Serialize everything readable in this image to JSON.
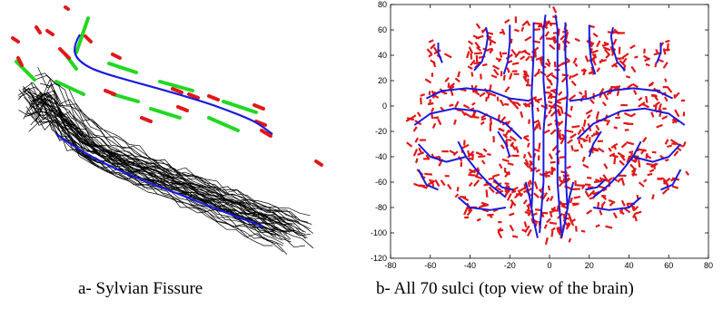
{
  "figure": {
    "caption_a": "a- Sylvian Fissure",
    "caption_b": "b- All 70 sulci (top view of the brain)"
  },
  "colors": {
    "blue": "#1a1adc",
    "red": "#e01818",
    "green": "#22d822",
    "black": "#000000"
  },
  "chart_data": [
    {
      "type": "line",
      "title": "",
      "xlabel": "",
      "ylabel": "",
      "grid": false,
      "legend": "none",
      "axes": "hidden",
      "description_series": [
        {
          "color": "#1a1adc"
        },
        {
          "color": "#e01818"
        },
        {
          "color": "#22d822"
        },
        {
          "color": "#000000"
        }
      ]
    },
    {
      "type": "scatter",
      "title": "",
      "xlabel": "",
      "ylabel": "",
      "xlim": [
        -80,
        80
      ],
      "ylim": [
        -120,
        80
      ],
      "x_ticks": [
        -80,
        -60,
        -40,
        -20,
        0,
        20,
        40,
        60,
        80
      ],
      "y_ticks": [
        -120,
        -100,
        -80,
        -60,
        -40,
        -20,
        0,
        20,
        40,
        60,
        80
      ],
      "grid": false,
      "series": [
        {
          "color": "#1a1adc",
          "type": "line",
          "curves": [
            [
              [
                -2,
                72
              ],
              [
                -3,
                60
              ],
              [
                -3,
                40
              ],
              [
                -3,
                20
              ],
              [
                -2,
                0
              ],
              [
                -3,
                -20
              ],
              [
                -3,
                -40
              ],
              [
                -3,
                -60
              ],
              [
                -4,
                -80
              ],
              [
                -5,
                -100
              ]
            ],
            [
              [
                3,
                72
              ],
              [
                4,
                60
              ],
              [
                4,
                40
              ],
              [
                4,
                20
              ],
              [
                3,
                0
              ],
              [
                4,
                -20
              ],
              [
                4,
                -40
              ],
              [
                4,
                -60
              ],
              [
                5,
                -80
              ],
              [
                6,
                -100
              ]
            ],
            [
              [
                -8,
                66
              ],
              [
                -8,
                40
              ],
              [
                -9,
                10
              ],
              [
                -8,
                -20
              ],
              [
                -8,
                -50
              ],
              [
                -9,
                -80
              ]
            ],
            [
              [
                8,
                66
              ],
              [
                8,
                40
              ],
              [
                9,
                10
              ],
              [
                8,
                -20
              ],
              [
                8,
                -50
              ],
              [
                9,
                -80
              ]
            ],
            [
              [
                -32,
                62
              ],
              [
                -31,
                55
              ],
              [
                -32,
                45
              ],
              [
                -34,
                35
              ],
              [
                -38,
                28
              ]
            ],
            [
              [
                -20,
                64
              ],
              [
                -20,
                50
              ],
              [
                -21,
                35
              ],
              [
                -23,
                25
              ]
            ],
            [
              [
                32,
                62
              ],
              [
                31,
                55
              ],
              [
                32,
                45
              ],
              [
                34,
                35
              ],
              [
                38,
                28
              ]
            ],
            [
              [
                20,
                64
              ],
              [
                20,
                50
              ],
              [
                21,
                35
              ],
              [
                23,
                25
              ]
            ],
            [
              [
                -56,
                50
              ],
              [
                -56,
                42
              ],
              [
                -54,
                34
              ]
            ],
            [
              [
                56,
                50
              ],
              [
                56,
                42
              ],
              [
                54,
                34
              ]
            ],
            [
              [
                -62,
                6
              ],
              [
                -54,
                12
              ],
              [
                -42,
                14
              ],
              [
                -30,
                12
              ],
              [
                -20,
                6
              ],
              [
                -10,
                4
              ]
            ],
            [
              [
                62,
                6
              ],
              [
                54,
                12
              ],
              [
                42,
                14
              ],
              [
                30,
                12
              ],
              [
                20,
                6
              ],
              [
                10,
                4
              ]
            ],
            [
              [
                -68,
                -15
              ],
              [
                -60,
                -6
              ],
              [
                -48,
                -2
              ],
              [
                -36,
                -4
              ],
              [
                -22,
                -14
              ],
              [
                -14,
                -26
              ]
            ],
            [
              [
                68,
                -15
              ],
              [
                60,
                -6
              ],
              [
                48,
                -2
              ],
              [
                36,
                -4
              ],
              [
                22,
                -14
              ],
              [
                14,
                -26
              ]
            ],
            [
              [
                -66,
                -30
              ],
              [
                -60,
                -40
              ],
              [
                -52,
                -44
              ],
              [
                -42,
                -40
              ]
            ],
            [
              [
                66,
                -30
              ],
              [
                60,
                -40
              ],
              [
                52,
                -44
              ],
              [
                42,
                -40
              ]
            ],
            [
              [
                -66,
                -50
              ],
              [
                -62,
                -62
              ],
              [
                -56,
                -66
              ]
            ],
            [
              [
                66,
                -50
              ],
              [
                62,
                -62
              ],
              [
                56,
                -66
              ]
            ],
            [
              [
                -46,
                -28
              ],
              [
                -42,
                -40
              ],
              [
                -36,
                -52
              ],
              [
                -30,
                -62
              ],
              [
                -22,
                -72
              ]
            ],
            [
              [
                46,
                -28
              ],
              [
                42,
                -40
              ],
              [
                36,
                -52
              ],
              [
                30,
                -62
              ],
              [
                22,
                -72
              ]
            ],
            [
              [
                -46,
                -72
              ],
              [
                -40,
                -80
              ],
              [
                -30,
                -82
              ],
              [
                -22,
                -80
              ]
            ],
            [
              [
                46,
                -72
              ],
              [
                40,
                -80
              ],
              [
                30,
                -82
              ],
              [
                22,
                -80
              ]
            ],
            [
              [
                -28,
                -58
              ],
              [
                -24,
                -64
              ],
              [
                -18,
                -66
              ]
            ],
            [
              [
                28,
                -58
              ],
              [
                24,
                -64
              ],
              [
                18,
                -66
              ]
            ],
            [
              [
                -12,
                -60
              ],
              [
                -10,
                -72
              ],
              [
                -8,
                -90
              ],
              [
                -6,
                -104
              ]
            ],
            [
              [
                12,
                -60
              ],
              [
                10,
                -72
              ],
              [
                8,
                -90
              ],
              [
                6,
                -104
              ]
            ],
            [
              [
                -26,
                -20
              ],
              [
                -22,
                -30
              ],
              [
                -20,
                -40
              ]
            ],
            [
              [
                26,
                -20
              ],
              [
                22,
                -30
              ],
              [
                20,
                -40
              ]
            ]
          ]
        },
        {
          "color": "#e01818",
          "type": "scatter",
          "note": "red point cloud of sulcal sample points, densely scattered around the blue sulci"
        }
      ]
    }
  ]
}
